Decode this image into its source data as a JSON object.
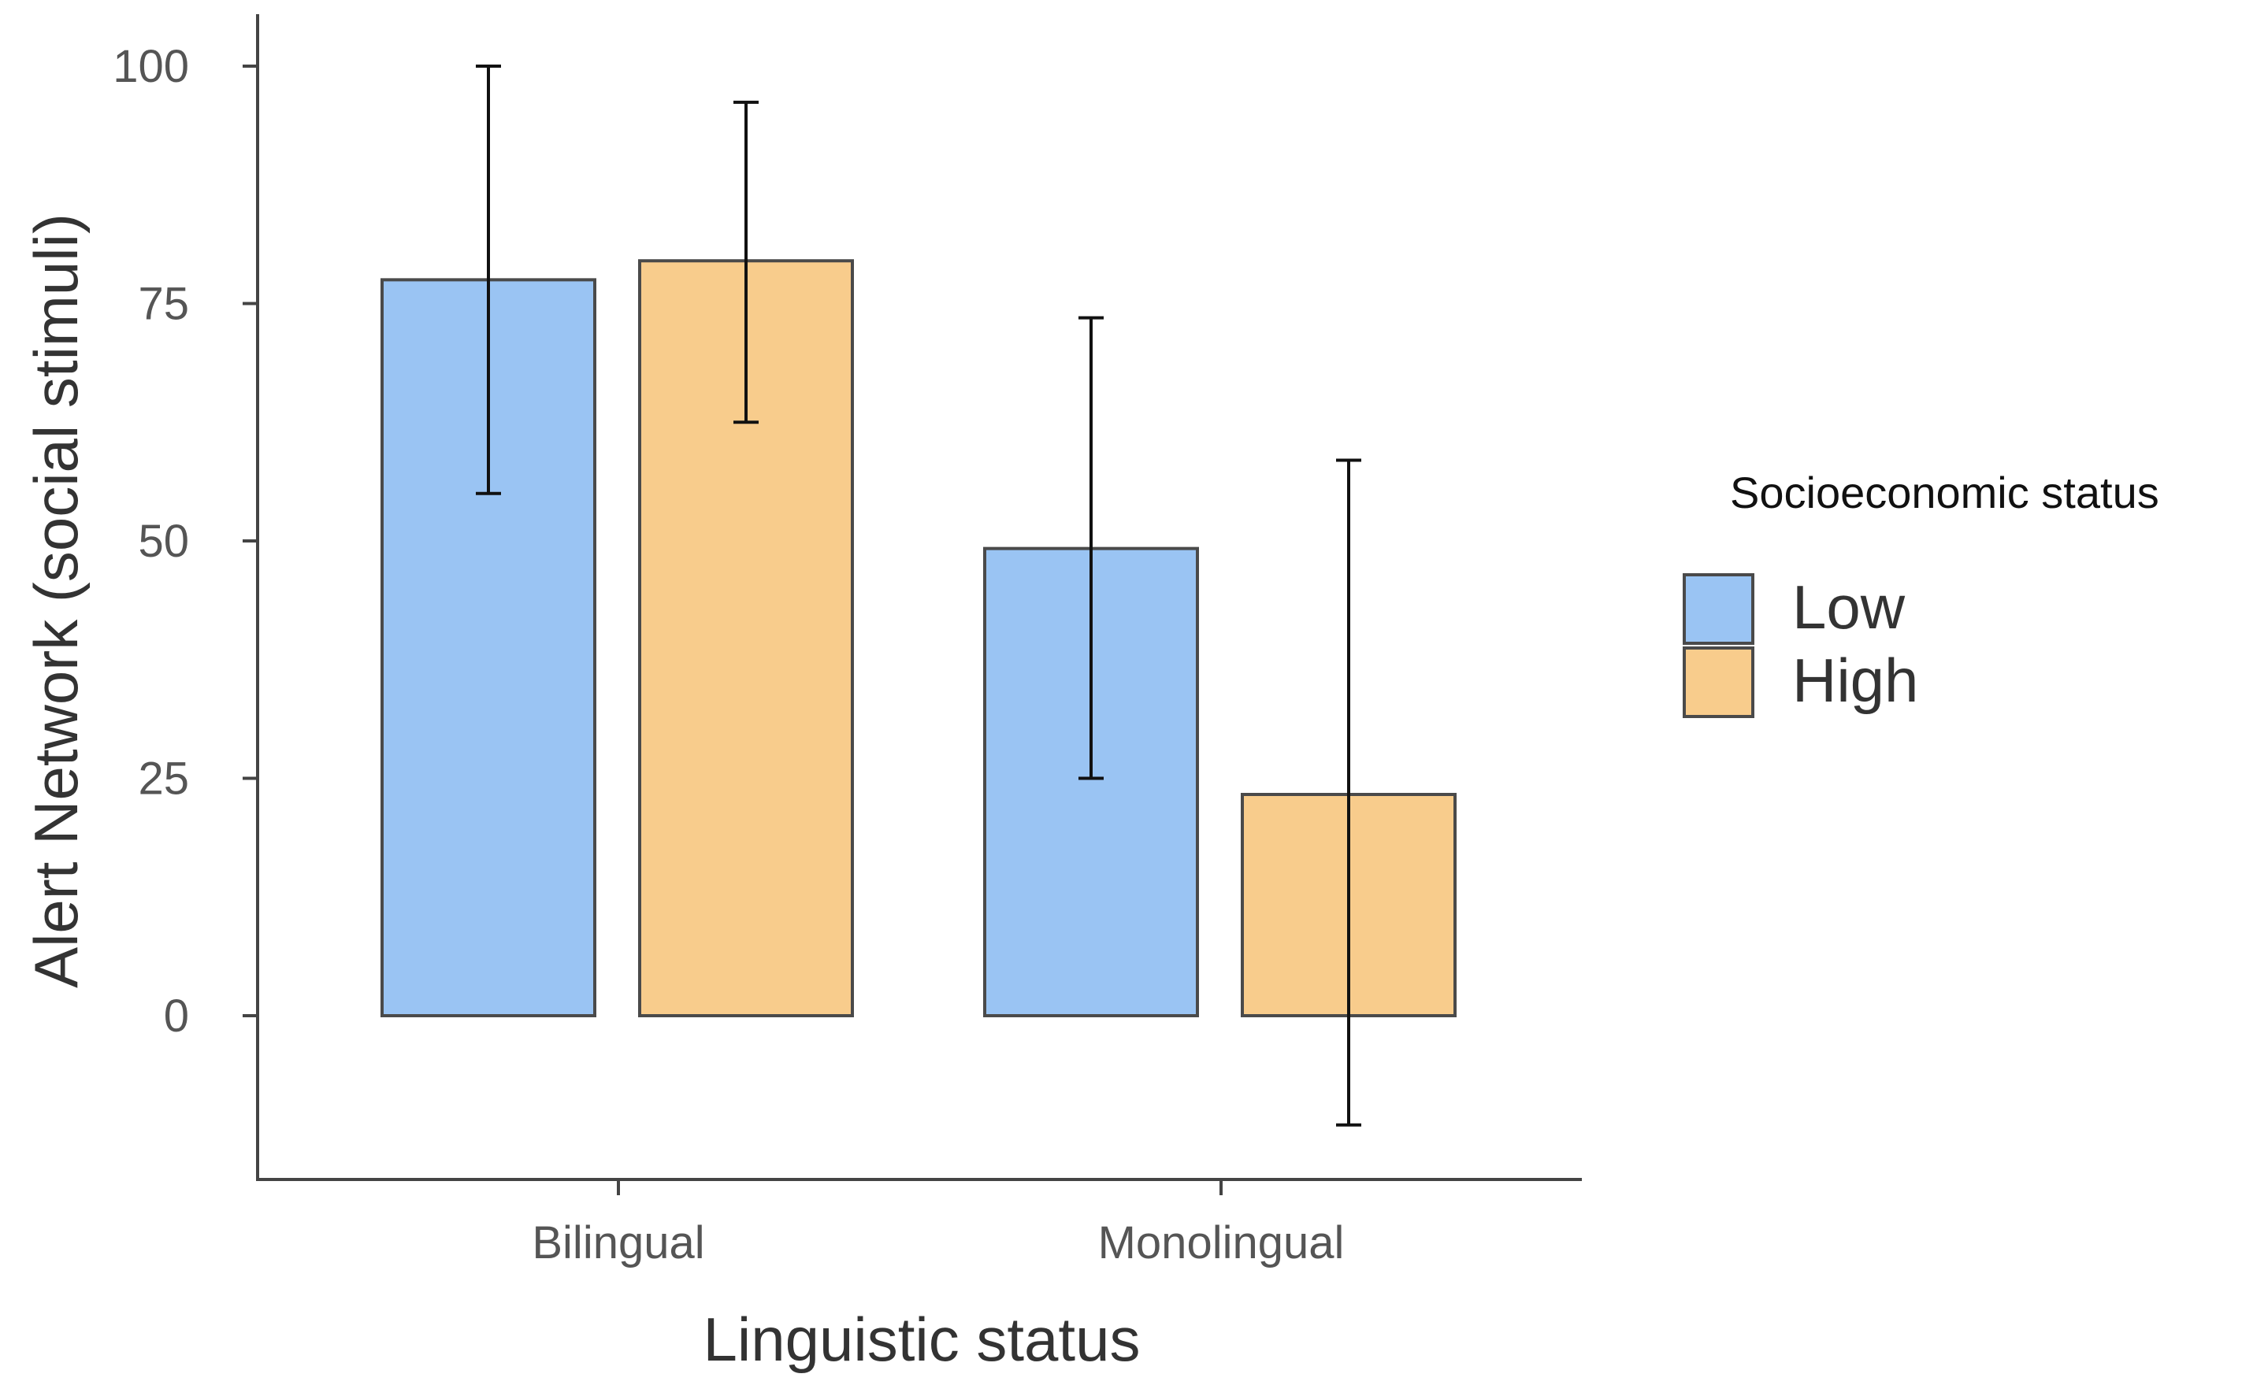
{
  "chart_data": {
    "type": "bar",
    "title": "",
    "xlabel": "Linguistic status",
    "ylabel": "Alert Network (social stimuli)",
    "categories": [
      "Bilingual",
      "Monolingual"
    ],
    "y_ticks": [
      0,
      25,
      50,
      75,
      100
    ],
    "ylim": [
      -17,
      106
    ],
    "grid": false,
    "legend": {
      "title": "Socioeconomic status",
      "position": "right"
    },
    "series": [
      {
        "name": "Low",
        "color": "#9ac4f3",
        "values": [
          77.5,
          49.2
        ],
        "error_low": [
          55.0,
          25.0
        ],
        "error_high": [
          100.0,
          73.5
        ]
      },
      {
        "name": "High",
        "color": "#f8cc8c",
        "values": [
          79.5,
          23.3
        ],
        "error_low": [
          62.5,
          -11.5
        ],
        "error_high": [
          96.2,
          58.5
        ]
      }
    ]
  }
}
